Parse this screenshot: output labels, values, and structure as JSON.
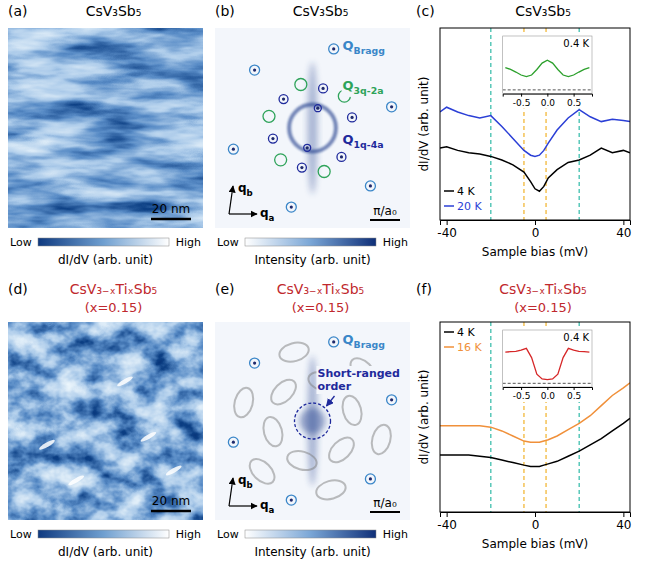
{
  "chart_data": [
    {
      "type": "image",
      "label": "(a)",
      "title": "CsV₃Sb₅",
      "scale_bar": "20 nm",
      "colorbar": {
        "low": "Low",
        "high": "High",
        "label": "dI/dV (arb. unit)"
      }
    },
    {
      "type": "fft",
      "label": "(b)",
      "title": "CsV₃Sb₅",
      "peaks": [
        {
          "text": "Q",
          "sub": "Bragg",
          "color": "#3a86c8"
        },
        {
          "text": "Q",
          "sub": "3q-2a",
          "color": "#2ea35a"
        },
        {
          "text": "Q",
          "sub": "1q-4a",
          "color": "#1f2a9c"
        }
      ],
      "axes_labels": [
        {
          "text": "q",
          "sub": "a"
        },
        {
          "text": "q",
          "sub": "b"
        }
      ],
      "scale_bar": "π/a₀",
      "colorbar": {
        "low": "Low",
        "high": "High",
        "label": "Intensity (arb. unit)"
      }
    },
    {
      "type": "line",
      "label": "(c)",
      "title": "CsV₃Sb₅",
      "xlabel": "Sample bias (mV)",
      "ylabel": "dI/dV (arb. unit)",
      "x": [
        -43,
        -40,
        -35,
        -30,
        -25,
        -20,
        -15,
        -10,
        -5,
        -2,
        0,
        2,
        4,
        6,
        10,
        15,
        20,
        25,
        30,
        35,
        40,
        43
      ],
      "series": [
        {
          "name": "4 K",
          "color": "#000000",
          "values": [
            0.4,
            0.41,
            0.38,
            0.36,
            0.35,
            0.33,
            0.3,
            0.26,
            0.2,
            0.12,
            0.06,
            0.04,
            0.08,
            0.15,
            0.22,
            0.28,
            0.3,
            0.34,
            0.4,
            0.36,
            0.38,
            0.36
          ]
        },
        {
          "name": "20 K",
          "color": "#2b3fd6",
          "values": [
            0.7,
            0.74,
            0.7,
            0.67,
            0.65,
            0.67,
            0.58,
            0.48,
            0.38,
            0.34,
            0.33,
            0.34,
            0.38,
            0.44,
            0.55,
            0.65,
            0.72,
            0.66,
            0.62,
            0.64,
            0.63,
            0.62
          ]
        }
      ],
      "xlim": [
        -43,
        43
      ],
      "xticks": [
        -40,
        0,
        40
      ],
      "ylim": [
        -0.2,
        1.4
      ],
      "tick_labels": "x",
      "legend": "lower left",
      "reference_lines": [
        {
          "x": -20,
          "color": "#3fbfae"
        },
        {
          "x": 20,
          "color": "#3fbfae"
        },
        {
          "x": -5,
          "color": "#f2b83a"
        },
        {
          "x": 5,
          "color": "#f2b83a"
        }
      ],
      "inset": {
        "type": "line",
        "title": "0.4 K",
        "x": [
          -0.8,
          -0.7,
          -0.6,
          -0.5,
          -0.4,
          -0.3,
          -0.2,
          -0.1,
          0,
          0.1,
          0.2,
          0.3,
          0.4,
          0.5,
          0.6,
          0.7,
          0.8
        ],
        "series": [
          {
            "color": "#2ca02c",
            "values": [
              0.6,
              0.55,
              0.48,
              0.4,
              0.36,
              0.4,
              0.55,
              0.72,
              0.8,
              0.72,
              0.55,
              0.4,
              0.36,
              0.4,
              0.48,
              0.55,
              0.6
            ]
          }
        ],
        "xlim": [
          -0.85,
          0.85
        ],
        "xticks": [
          -0.5,
          {
            "value": 0,
            "label": "0.0"
          },
          0.5
        ],
        "ylim": [
          -0.1,
          1.45
        ],
        "tick_labels": "x",
        "reference_lines": [
          {
            "y": 0,
            "color": "#555555"
          }
        ]
      }
    },
    {
      "type": "image",
      "label": "(d)",
      "title": "CsV₃₋ₓTiₓSb₅",
      "subtitle": "(x=0.15)",
      "scale_bar": "20 nm",
      "colorbar": {
        "low": "Low",
        "high": "High",
        "label": "dI/dV (arb. unit)"
      }
    },
    {
      "type": "fft",
      "label": "(e)",
      "title": "CsV₃₋ₓTiₓSb₅",
      "subtitle": "(x=0.15)",
      "peaks": [
        {
          "text": "Q",
          "sub": "Bragg",
          "color": "#3a86c8"
        }
      ],
      "annotation": "Short-ranged order",
      "axes_labels": [
        {
          "text": "q",
          "sub": "a"
        },
        {
          "text": "q",
          "sub": "b"
        }
      ],
      "scale_bar": "π/a₀",
      "colorbar": {
        "low": "Low",
        "high": "High",
        "label": "Intensity (arb. unit)"
      }
    },
    {
      "type": "line",
      "label": "(f)",
      "title": "CsV₃₋ₓTiₓSb₅",
      "subtitle": "(x=0.15)",
      "xlabel": "Sample bias (mV)",
      "ylabel": "dI/dV (arb. unit)",
      "x": [
        -43,
        -40,
        -35,
        -30,
        -25,
        -20,
        -15,
        -10,
        -5,
        -2,
        0,
        2,
        4,
        6,
        10,
        15,
        20,
        25,
        30,
        35,
        40,
        43
      ],
      "series": [
        {
          "name": "4 K",
          "color": "#000000",
          "values": [
            0.45,
            0.45,
            0.45,
            0.45,
            0.44,
            0.43,
            0.41,
            0.39,
            0.37,
            0.36,
            0.36,
            0.36,
            0.37,
            0.38,
            0.4,
            0.44,
            0.48,
            0.53,
            0.58,
            0.64,
            0.7,
            0.74
          ]
        },
        {
          "name": "16 K",
          "color": "#f0903a",
          "values": [
            0.68,
            0.68,
            0.68,
            0.68,
            0.68,
            0.67,
            0.64,
            0.6,
            0.56,
            0.55,
            0.55,
            0.55,
            0.56,
            0.57,
            0.6,
            0.65,
            0.7,
            0.76,
            0.84,
            0.92,
            0.98,
            1.02
          ]
        }
      ],
      "xlim": [
        -43,
        43
      ],
      "xticks": [
        -40,
        0,
        40
      ],
      "ylim": [
        0,
        1.5
      ],
      "tick_labels": "x",
      "legend": "upper left",
      "reference_lines": [
        {
          "x": -20,
          "color": "#3fbfae"
        },
        {
          "x": 20,
          "color": "#3fbfae"
        },
        {
          "x": -5,
          "color": "#f2b83a"
        },
        {
          "x": 5,
          "color": "#f2b83a"
        }
      ],
      "inset": {
        "type": "line",
        "title": "0.4 K",
        "x": [
          -0.8,
          -0.7,
          -0.6,
          -0.5,
          -0.4,
          -0.3,
          -0.2,
          -0.1,
          0,
          0.1,
          0.2,
          0.3,
          0.4,
          0.5,
          0.6,
          0.7,
          0.8
        ],
        "series": [
          {
            "color": "#d62728",
            "values": [
              0.85,
              0.86,
              0.87,
              0.9,
              0.95,
              0.7,
              0.25,
              0.12,
              0.1,
              0.12,
              0.25,
              0.7,
              0.95,
              0.9,
              0.87,
              0.86,
              0.85
            ]
          }
        ],
        "xlim": [
          -0.85,
          0.85
        ],
        "xticks": [
          -0.5,
          {
            "value": 0,
            "label": "0.0"
          },
          0.5
        ],
        "ylim": [
          -0.1,
          1.45
        ],
        "tick_labels": "x",
        "reference_lines": [
          {
            "y": 0,
            "color": "#555555"
          }
        ]
      }
    }
  ]
}
